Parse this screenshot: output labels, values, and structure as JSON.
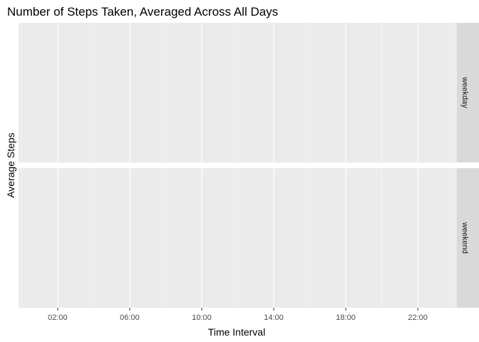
{
  "chart_data": {
    "type": "line",
    "title": "Number of Steps Taken, Averaged Across All Days",
    "xlabel": "Time Interval",
    "ylabel": "Average Steps",
    "x_ticks": [
      "02:00",
      "06:00",
      "10:00",
      "14:00",
      "18:00",
      "22:00"
    ],
    "x_tick_hours": [
      2,
      6,
      10,
      14,
      18,
      22
    ],
    "xlim_hours": [
      0,
      24
    ],
    "panels": [
      {
        "label": "weekday",
        "series": []
      },
      {
        "label": "weekend",
        "series": []
      }
    ],
    "grid": true,
    "facet": "rows",
    "colors": {
      "panel_background": "#ebebeb",
      "grid_major": "#ffffff",
      "grid_minor": "#f5f5f5",
      "strip_background": "#d9d9d9",
      "tick_text": "#4d4d4d"
    }
  }
}
